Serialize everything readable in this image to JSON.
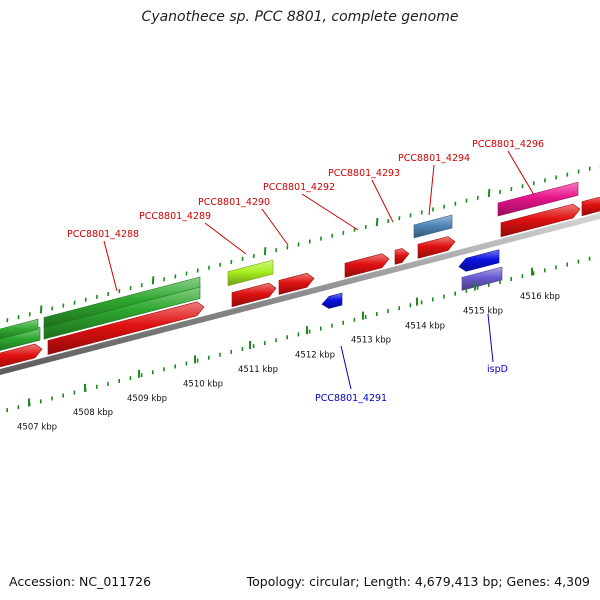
{
  "title": "Cyanothece sp. PCC 8801, complete genome",
  "footer": {
    "accession": "Accession: NC_011726",
    "summary": "Topology: circular; Length: 4,679,413 bp; Genes: 4,309"
  },
  "colors": {
    "backbone": "#8e8e8e",
    "ticks": "#1e8a1e",
    "gene_red": "#e01010",
    "gene_green": "#2ea82e",
    "gene_lime": "#a8f020",
    "gene_steel": "#4f86b8",
    "gene_pink": "#e8148c",
    "gene_blue": "#0a12e0",
    "gene_purple": "#6a5ad0",
    "label_red": "#cc0000",
    "label_blue": "#0000cc"
  },
  "scale_labels": [
    "4507 kbp",
    "4508 kbp",
    "4509 kbp",
    "4510 kbp",
    "4511 kbp",
    "4512 kbp",
    "4513 kbp",
    "4514 kbp",
    "4515 kbp",
    "4516 kbp"
  ],
  "gene_labels_top": [
    "PCC8801_4288",
    "PCC8801_4289",
    "PCC8801_4290",
    "PCC8801_4292",
    "PCC8801_4293",
    "PCC8801_4294",
    "PCC8801_4296"
  ],
  "gene_labels_bottom": [
    "PCC8801_4291",
    "ispD"
  ]
}
